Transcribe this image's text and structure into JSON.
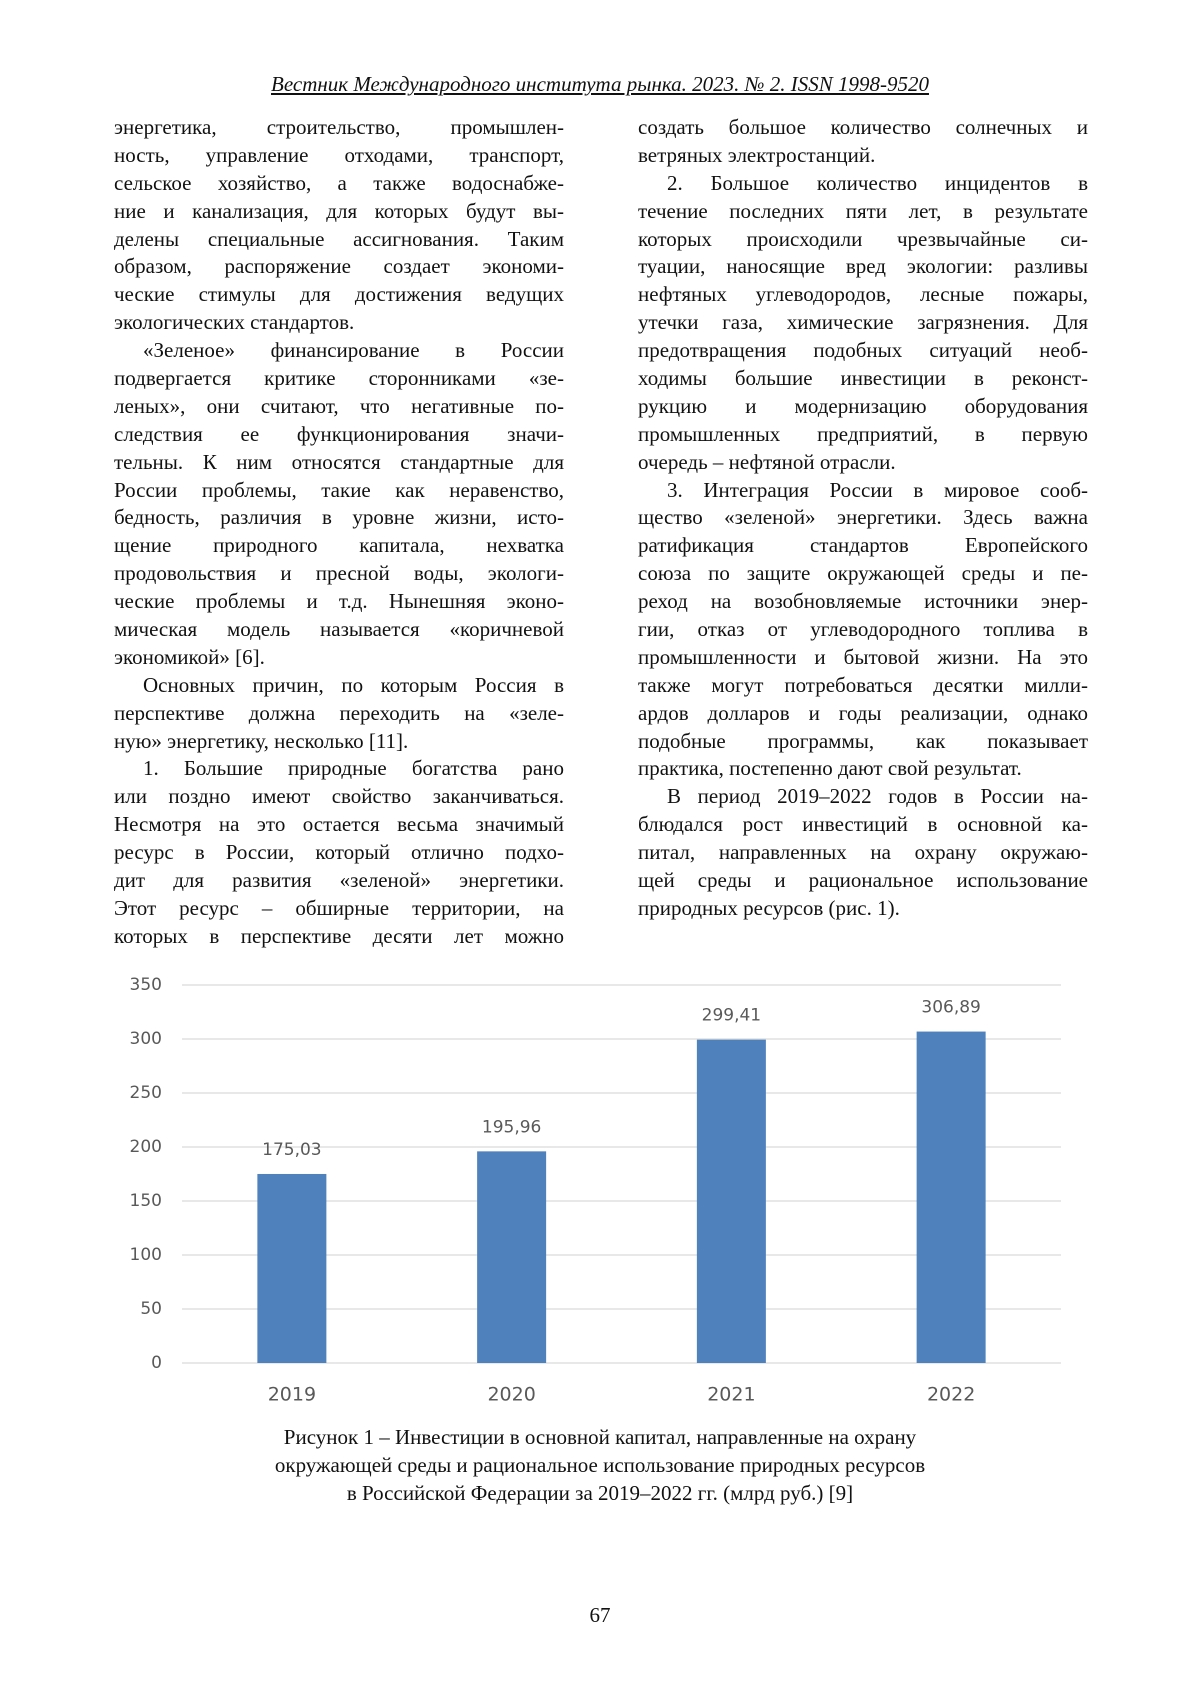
{
  "header": "Вестник Международного института рынка. 2023. № 2. ISSN 1998-9520",
  "left_column": [
    [
      "энергетика, строительство, промышлен-",
      "ность, управление отходами, транспорт,",
      "сельское хозяйство, а также водоснабже-",
      "ние и канализация, для которых будут вы-",
      "делены специальные ассигнования. Таким",
      "образом, распоряжение создает экономи-",
      "ческие стимулы для достижения ведущих",
      "экологических стандартов."
    ],
    [
      "«Зеленое» финансирование в России",
      "подвергается критике сторонниками «зе-",
      "леных», они считают, что негативные по-",
      "следствия ее функционирования значи-",
      "тельны. К ним относятся стандартные для",
      "России проблемы, такие как неравенство,",
      "бедность, различия в уровне жизни, исто-",
      "щение природного капитала, нехватка",
      "продовольствия и пресной воды, экологи-",
      "ческие проблемы и т.д. Нынешняя эконо-",
      "мическая модель называется «коричневой",
      "экономикой» [6]."
    ],
    [
      "Основных причин, по которым Россия в",
      "перспективе должна переходить на «зеле-",
      "ную» энергетику, несколько [11]."
    ],
    [
      "1. Большие природные богатства рано",
      "или поздно имеют свойство заканчиваться.",
      "Несмотря на это остается весьма значимый",
      "ресурс в России, который отлично подхо-",
      "дит для развития «зеленой» энергетики.",
      "Этот ресурс – обширные территории, на",
      "которых в перспективе десяти лет можно"
    ]
  ],
  "right_column": [
    [
      "создать большое количество солнечных и",
      "ветряных электростанций."
    ],
    [
      "2. Большое количество инцидентов в",
      "течение последних пяти лет, в результате",
      "которых происходили чрезвычайные си-",
      "туации, наносящие вред экологии: разливы",
      "нефтяных углеводородов, лесные пожары,",
      "утечки газа, химические загрязнения. Для",
      "предотвращения подобных ситуаций необ-",
      "ходимы большие инвестиции в реконст-",
      "рукцию и модернизацию оборудования",
      "промышленных предприятий, в первую",
      "очередь – нефтяной отрасли."
    ],
    [
      "3. Интеграция России в мировое сооб-",
      "щество «зеленой» энергетики. Здесь важна",
      "ратификация стандартов Европейского",
      "союза по защите окружающей среды и пе-",
      "реход на возобновляемые источники энер-",
      "гии, отказ от углеводородного топлива в",
      "промышленности и бытовой жизни. На это",
      "также могут потребоваться десятки милли-",
      "ардов долларов и годы реализации, однако",
      "подобные программы, как показывает",
      "практика, постепенно дают свой результат."
    ],
    [
      "В период 2019–2022 годов в России на-",
      "блюдался рост инвестиций в основной ка-",
      "питал, направленных на охрану окружаю-",
      "щей среды и рациональное использование",
      "природных ресурсов (рис. 1)."
    ]
  ],
  "chart_data": {
    "type": "bar",
    "categories": [
      "2019",
      "2020",
      "2021",
      "2022"
    ],
    "values": [
      175.03,
      195.96,
      299.41,
      306.89
    ],
    "value_labels": [
      "175,03",
      "195,96",
      "299,41",
      "306,89"
    ],
    "color": "#4f81bd",
    "ylim": [
      0,
      350
    ],
    "yticks": [
      0,
      50,
      100,
      150,
      200,
      250,
      300,
      350
    ],
    "grid": true,
    "caption": [
      "Рисунок 1 – Инвестиции в основной капитал, направленные на охрану",
      "окружающей среды и рациональное использование природных ресурсов",
      "в Российской Федерации за 2019–2022 гг. (млрд руб.) [9]"
    ]
  },
  "page_number": "67"
}
